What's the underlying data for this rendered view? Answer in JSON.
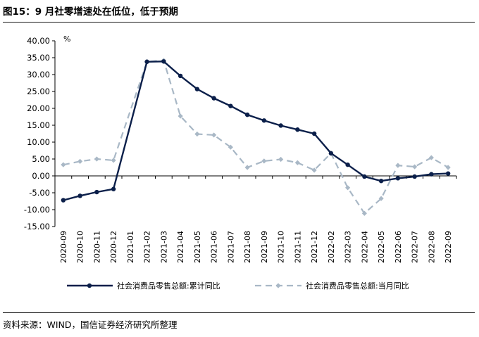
{
  "title": "图15：9 月社零增速处在低位，低于预期",
  "source": "资料来源：WIND，国信证券经济研究所整理",
  "chart_data": {
    "type": "line",
    "y_unit": "%",
    "ylim": [
      -15,
      40
    ],
    "y_ticks": [
      "40.00",
      "35.00",
      "30.00",
      "25.00",
      "20.00",
      "15.00",
      "10.00",
      "5.00",
      "0.00",
      "-5.00",
      "-10.00",
      "-15.00"
    ],
    "y_tick_values": [
      40,
      35,
      30,
      25,
      20,
      15,
      10,
      5,
      0,
      -5,
      -10,
      -15
    ],
    "categories": [
      "2020-09",
      "2020-10",
      "2020-11",
      "2020-12",
      "2021-01",
      "2021-02",
      "2021-03",
      "2021-04",
      "2021-05",
      "2021-06",
      "2021-07",
      "2021-08",
      "2021-09",
      "2021-10",
      "2021-11",
      "2021-12",
      "2022-02",
      "2022-03",
      "2022-04",
      "2022-05",
      "2022-06",
      "2022-07",
      "2022-08",
      "2022-09"
    ],
    "series": [
      {
        "name": "社会消费品零售总额:累计同比",
        "color": "#0b1f4a",
        "style": "solid",
        "values": [
          -7.2,
          -5.9,
          -4.8,
          -3.9,
          null,
          33.8,
          33.9,
          29.6,
          25.7,
          23.0,
          20.7,
          18.1,
          16.4,
          14.9,
          13.7,
          12.5,
          6.7,
          3.3,
          -0.2,
          -1.5,
          -0.7,
          -0.2,
          0.5,
          0.7
        ]
      },
      {
        "name": "社会消费品零售总额:当月同比",
        "color": "#a9b8c6",
        "style": "dashed",
        "values": [
          3.3,
          4.3,
          5.0,
          4.6,
          null,
          33.8,
          34.2,
          17.7,
          12.4,
          12.1,
          8.5,
          2.5,
          4.4,
          4.9,
          3.9,
          1.7,
          6.7,
          -3.5,
          -11.1,
          -6.7,
          3.1,
          2.7,
          5.4,
          2.5
        ]
      }
    ],
    "legend_position": "bottom",
    "grid": false
  }
}
